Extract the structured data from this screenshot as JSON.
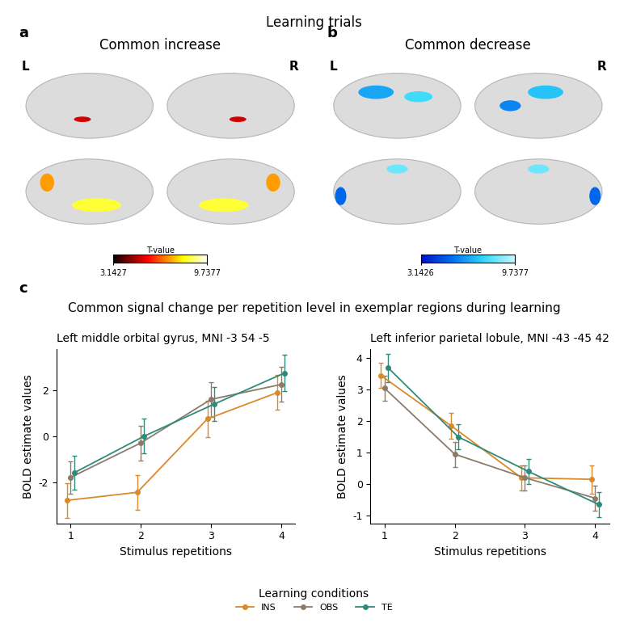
{
  "title": "Learning trials",
  "brain_panels": [
    {
      "letter": "a",
      "title": "Common increase",
      "hemispheres": [
        "L",
        "R"
      ],
      "colorbar": {
        "label": "T-value",
        "range": [
          3.1427,
          9.7377
        ],
        "ticks": [
          3.1427,
          9.7377
        ]
      }
    },
    {
      "letter": "b",
      "title": "Common decrease",
      "hemispheres": [
        "L",
        "R"
      ],
      "colorbar": {
        "label": "T-value",
        "range": [
          3.1426,
          9.7377
        ],
        "ticks": [
          3.1426,
          9.7377
        ]
      }
    }
  ],
  "line_panel": {
    "letter": "c",
    "title": "Common signal change per repetition level in exemplar regions during learning",
    "legend_title": "Learning conditions"
  },
  "chart_data": [
    {
      "type": "line",
      "title": "Left middle orbital gyrus, MNI -3 54 -5",
      "x_label": "Stimulus repetitions",
      "y_label": "BOLD estimate values",
      "x": [
        1,
        2,
        3,
        4
      ],
      "xlim": [
        0.8,
        4.2
      ],
      "xticks": [
        1,
        2,
        3,
        4
      ],
      "ylim": [
        -3.8,
        3.8
      ],
      "yticks": [
        -2,
        0,
        2
      ],
      "legend": "lower center",
      "marker": "o",
      "series": [
        {
          "name": "INS",
          "color": "#D98A2B",
          "values": [
            -2.8,
            -2.45,
            0.75,
            1.9
          ],
          "error": [
            0.75,
            0.75,
            0.8,
            0.75
          ]
        },
        {
          "name": "OBS",
          "color": "#8C7B6B",
          "values": [
            -1.8,
            -0.3,
            1.6,
            2.25
          ],
          "error": [
            0.7,
            0.75,
            0.75,
            0.75
          ]
        },
        {
          "name": "TE",
          "color": "#2E8B7A",
          "values": [
            -1.6,
            0.0,
            1.4,
            2.75
          ],
          "error": [
            0.75,
            0.75,
            0.75,
            0.8
          ]
        }
      ]
    },
    {
      "type": "line",
      "title": "Left inferior parietal lobule, MNI -43 -45 42",
      "x_label": "Stimulus repetitions",
      "y_label": "BOLD estimate values",
      "x": [
        1,
        2,
        3,
        4
      ],
      "xlim": [
        0.8,
        4.2
      ],
      "xticks": [
        1,
        2,
        3,
        4
      ],
      "ylim": [
        -1.25,
        4.3
      ],
      "yticks": [
        -1,
        0,
        1,
        2,
        3,
        4
      ],
      "legend": "lower center",
      "marker": "o",
      "series": [
        {
          "name": "INS",
          "color": "#D98A2B",
          "values": [
            3.45,
            1.85,
            0.2,
            0.15
          ],
          "error": [
            0.4,
            0.4,
            0.4,
            0.45
          ]
        },
        {
          "name": "OBS",
          "color": "#8C7B6B",
          "values": [
            3.05,
            0.95,
            0.2,
            -0.45
          ],
          "error": [
            0.4,
            0.4,
            0.4,
            0.4
          ]
        },
        {
          "name": "TE",
          "color": "#2E8B7A",
          "values": [
            3.7,
            1.5,
            0.4,
            -0.65
          ],
          "error": [
            0.45,
            0.4,
            0.4,
            0.4
          ]
        }
      ]
    }
  ]
}
